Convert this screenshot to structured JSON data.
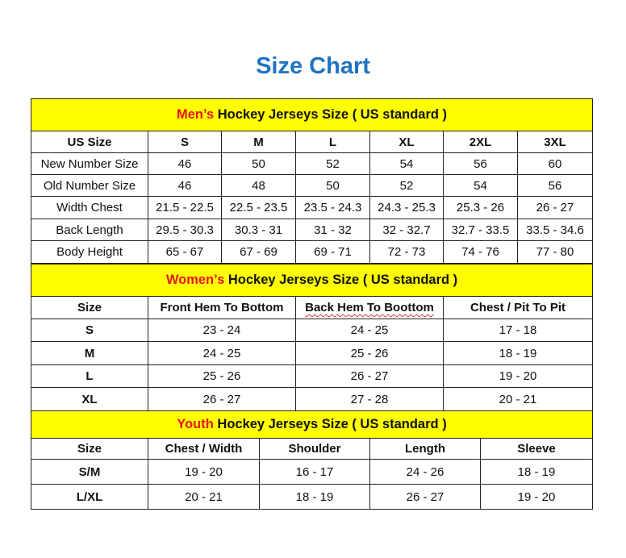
{
  "title": "Size Chart",
  "colors": {
    "title": "#1f73c1",
    "section_bg": "#ffff00",
    "accent": "#e8141b"
  },
  "men": {
    "accent": "Men’s",
    "heading": " Hockey Jerseys Size ( US standard )",
    "columns": [
      "US Size",
      "S",
      "M",
      "L",
      "XL",
      "2XL",
      "3XL"
    ],
    "rows": [
      [
        "New Number Size",
        "46",
        "50",
        "52",
        "54",
        "56",
        "60"
      ],
      [
        "Old Number Size",
        "46",
        "48",
        "50",
        "52",
        "54",
        "56"
      ],
      [
        "Width Chest",
        "21.5 - 22.5",
        "22.5 - 23.5",
        "23.5 - 24.3",
        "24.3 - 25.3",
        "25.3 - 26",
        "26 - 27"
      ],
      [
        "Back Length",
        "29.5 - 30.3",
        "30.3 - 31",
        "31 - 32",
        "32 - 32.7",
        "32.7 - 33.5",
        "33.5 - 34.6"
      ],
      [
        "Body Height",
        "65 - 67",
        "67 - 69",
        "69 - 71",
        "72 - 73",
        "74 - 76",
        "77 - 80"
      ]
    ]
  },
  "women": {
    "accent": "Women’s",
    "heading": " Hockey Jerseys Size ( US standard )",
    "columns": [
      "Size",
      "Front Hem To Bottom",
      "Back Hem To Boottom",
      "Chest / Pit To Pit"
    ],
    "rows": [
      [
        "S",
        "23 - 24",
        "24 - 25",
        "17 - 18"
      ],
      [
        "M",
        "24 - 25",
        "25 - 26",
        "18 - 19"
      ],
      [
        "L",
        "25 - 26",
        "26 - 27",
        "19 - 20"
      ],
      [
        "XL",
        "26 - 27",
        "27 - 28",
        "20 - 21"
      ]
    ]
  },
  "youth": {
    "accent": "Youth",
    "heading": " Hockey Jerseys Size ( US standard )",
    "columns": [
      "Size",
      "Chest / Width",
      "Shoulder",
      "Length",
      "Sleeve"
    ],
    "rows": [
      [
        "S/M",
        "19 - 20",
        "16 - 17",
        "24 - 26",
        "18 - 19"
      ],
      [
        "L/XL",
        "20 - 21",
        "18 - 19",
        "26 - 27",
        "19 - 20"
      ]
    ]
  }
}
